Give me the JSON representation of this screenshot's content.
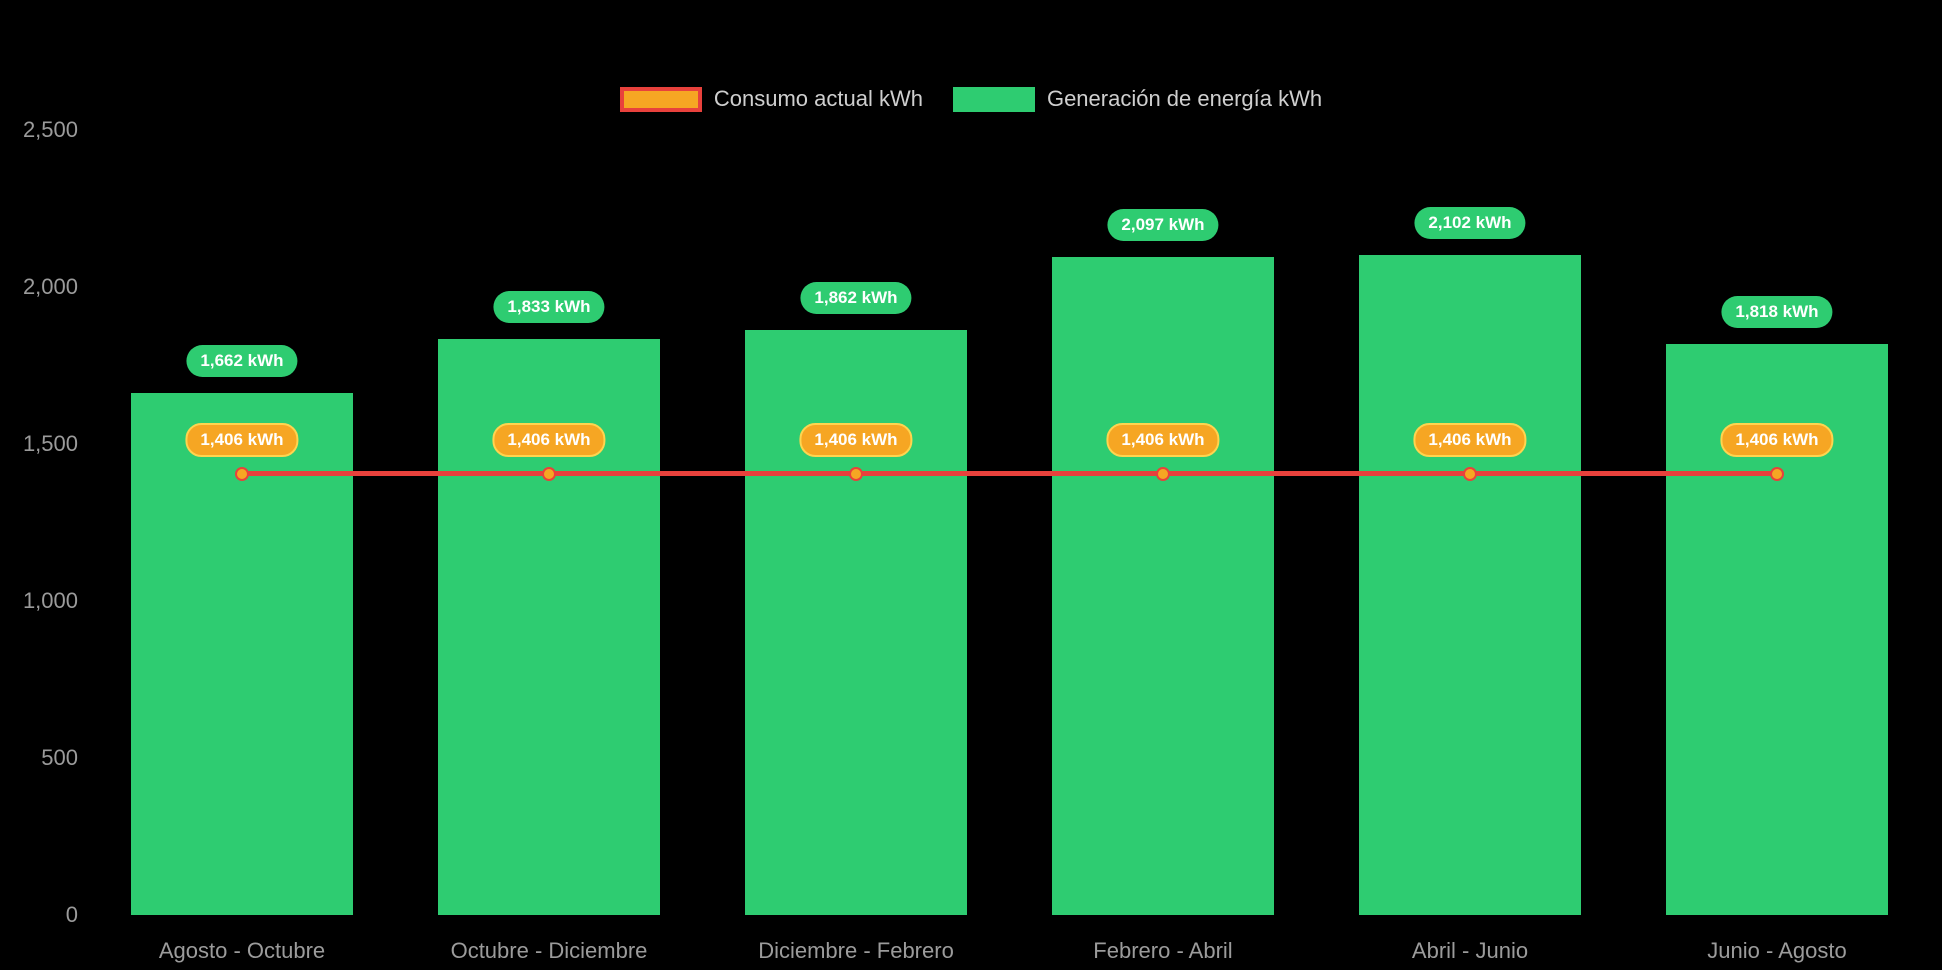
{
  "page": {
    "background": "#000000"
  },
  "chart_data": {
    "type": "bar",
    "title": "",
    "categories": [
      "Agosto - Octubre",
      "Octubre - Diciembre",
      "Diciembre - Febrero",
      "Febrero - Abril",
      "Abril - Junio",
      "Junio - Agosto"
    ],
    "series": [
      {
        "name": "Consumo actual kWh",
        "type": "line",
        "values": [
          1406,
          1406,
          1406,
          1406,
          1406,
          1406
        ],
        "point_labels": [
          "1,406 kWh",
          "1,406 kWh",
          "1,406 kWh",
          "1,406 kWh",
          "1,406 kWh",
          "1,406 kWh"
        ],
        "line_color": "#e8413c",
        "point_color": "#f6a623",
        "badge_bg": "#f6a623",
        "badge_border": "#ffd44f",
        "badge_text_color": "#ffffff"
      },
      {
        "name": "Generación de energía kWh",
        "type": "bar",
        "values": [
          1662,
          1833,
          1862,
          2097,
          2102,
          1818
        ],
        "point_labels": [
          "1,662 kWh",
          "1,833 kWh",
          "1,862 kWh",
          "2,097 kWh",
          "2,102 kWh",
          "1,818 kWh"
        ],
        "bar_color": "#2ecc71",
        "badge_bg": "#2ecc71",
        "badge_text_color": "#ffffff"
      }
    ],
    "ylim": [
      0,
      2500
    ],
    "yticks": [
      0,
      500,
      1000,
      1500,
      2000,
      2500
    ],
    "ytick_labels": [
      "0",
      "500",
      "1,000",
      "1,500",
      "2,000",
      "2,500"
    ],
    "grid": false,
    "legend_position": "top",
    "axis_text_color": "#9b9b9b",
    "legend_text_color": "#cfcfcf",
    "background": "#000000"
  }
}
